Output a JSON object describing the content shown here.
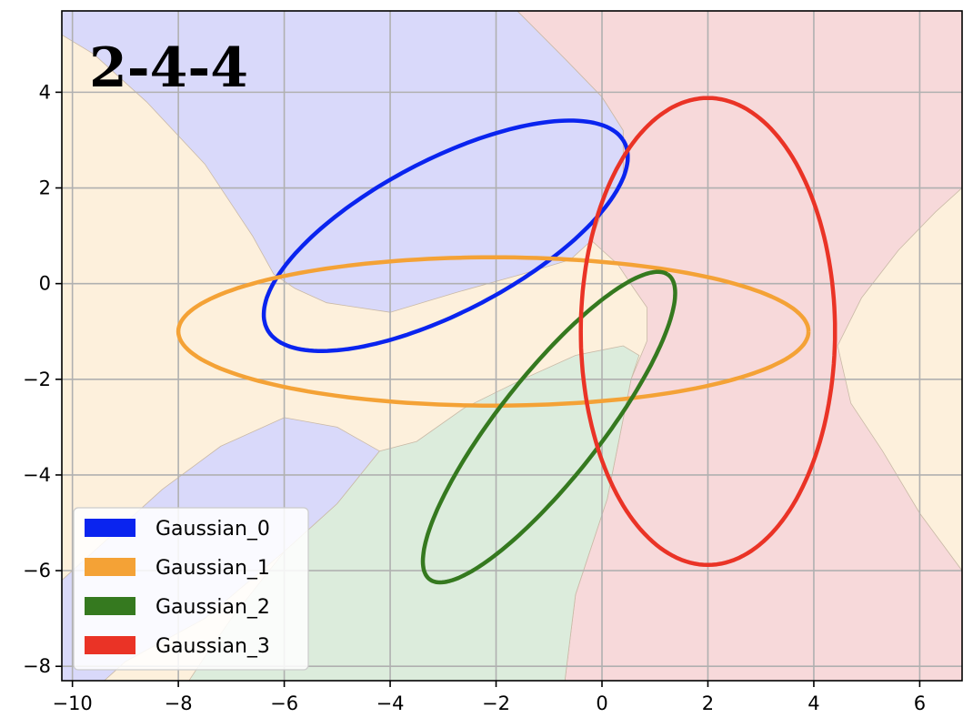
{
  "chart_data": {
    "type": "contour",
    "title": "2-4-4",
    "xlim": [
      -10.2,
      6.8
    ],
    "ylim": [
      -8.3,
      5.7
    ],
    "xticks": [
      -10,
      -8,
      -6,
      -4,
      -2,
      0,
      2,
      4,
      6
    ],
    "yticks": [
      -8,
      -6,
      -4,
      -2,
      0,
      2,
      4
    ],
    "grid": true,
    "legend_position": "lower-left",
    "region_colors": {
      "Gaussian_0": "#d9d9fa",
      "Gaussian_1": "#fdf0dc",
      "Gaussian_2": "#dcecdc",
      "Gaussian_3": "#f7d9da"
    },
    "regions": [
      {
        "series": "Gaussian_1",
        "polygon": [
          [
            -10.2,
            -8.3
          ],
          [
            6.8,
            -8.3
          ],
          [
            6.8,
            5.7
          ],
          [
            -10.2,
            5.7
          ]
        ]
      },
      {
        "series": "Gaussian_3",
        "polygon": [
          [
            -1.6,
            5.7
          ],
          [
            6.8,
            5.7
          ],
          [
            6.8,
            2.0
          ],
          [
            6.3,
            1.5
          ],
          [
            5.6,
            0.7
          ],
          [
            4.9,
            -0.3
          ],
          [
            4.45,
            -1.3
          ],
          [
            4.7,
            -2.5
          ],
          [
            5.3,
            -3.5
          ],
          [
            6.0,
            -4.8
          ],
          [
            6.8,
            -6.0
          ],
          [
            6.8,
            -8.3
          ],
          [
            -0.7,
            -8.3
          ],
          [
            -0.5,
            -6.5
          ],
          [
            0.1,
            -4.5
          ],
          [
            0.55,
            -2.0
          ],
          [
            0.85,
            -1.2
          ],
          [
            0.85,
            -0.5
          ],
          [
            0.6,
            -0.1
          ],
          [
            0.3,
            0.4
          ],
          [
            -0.2,
            0.9
          ],
          [
            0.0,
            1.5
          ],
          [
            0.4,
            2.2
          ],
          [
            0.4,
            3.2
          ],
          [
            0.0,
            3.9
          ],
          [
            -0.7,
            4.7
          ]
        ]
      },
      {
        "series": "Gaussian_0",
        "polygon": [
          [
            -10.2,
            5.7
          ],
          [
            -1.6,
            5.7
          ],
          [
            -0.7,
            4.7
          ],
          [
            0.0,
            3.9
          ],
          [
            0.4,
            3.2
          ],
          [
            0.4,
            2.2
          ],
          [
            0.0,
            1.5
          ],
          [
            -0.2,
            0.9
          ],
          [
            -0.6,
            0.5
          ],
          [
            -1.5,
            0.2
          ],
          [
            -2.8,
            -0.2
          ],
          [
            -4.0,
            -0.6
          ],
          [
            -5.2,
            -0.4
          ],
          [
            -5.8,
            -0.1
          ],
          [
            -6.2,
            0.2
          ],
          [
            -6.6,
            1.0
          ],
          [
            -7.5,
            2.5
          ],
          [
            -8.6,
            3.8
          ],
          [
            -9.6,
            4.8
          ],
          [
            -10.2,
            5.2
          ]
        ]
      },
      {
        "series": "Gaussian_0",
        "polygon": [
          [
            -10.2,
            -8.3
          ],
          [
            -9.4,
            -8.3
          ],
          [
            -9.0,
            -7.9
          ],
          [
            -7.5,
            -7.0
          ],
          [
            -6.0,
            -5.6
          ],
          [
            -5.0,
            -4.6
          ],
          [
            -4.2,
            -3.5
          ],
          [
            -5.0,
            -3.0
          ],
          [
            -6.0,
            -2.8
          ],
          [
            -7.2,
            -3.4
          ],
          [
            -8.3,
            -4.3
          ],
          [
            -9.3,
            -5.3
          ],
          [
            -10.2,
            -6.2
          ]
        ]
      },
      {
        "series": "Gaussian_2",
        "polygon": [
          [
            -7.8,
            -8.3
          ],
          [
            -0.7,
            -8.3
          ],
          [
            -0.5,
            -6.5
          ],
          [
            0.1,
            -4.5
          ],
          [
            0.55,
            -2.0
          ],
          [
            0.7,
            -1.5
          ],
          [
            0.4,
            -1.3
          ],
          [
            -0.5,
            -1.5
          ],
          [
            -1.5,
            -2.0
          ],
          [
            -2.6,
            -2.6
          ],
          [
            -3.5,
            -3.3
          ],
          [
            -4.2,
            -3.5
          ],
          [
            -5.0,
            -4.6
          ],
          [
            -6.0,
            -5.6
          ],
          [
            -7.0,
            -7.0
          ],
          [
            -7.5,
            -7.8
          ]
        ]
      }
    ],
    "series": [
      {
        "name": "Gaussian_0",
        "color": "#0a24ef",
        "center": [
          -2.95,
          1.0
        ],
        "semi_axes": [
          3.9,
          1.55
        ],
        "angle_deg": 31
      },
      {
        "name": "Gaussian_1",
        "color": "#f4a236",
        "center": [
          -2.05,
          -1.0
        ],
        "semi_axes": [
          5.95,
          1.55
        ],
        "angle_deg": 0
      },
      {
        "name": "Gaussian_2",
        "color": "#35791f",
        "center": [
          -1.0,
          -3.0
        ],
        "semi_axes": [
          3.9,
          1.0
        ],
        "angle_deg": 55
      },
      {
        "name": "Gaussian_3",
        "color": "#ea3326",
        "center": [
          2.0,
          -1.0
        ],
        "semi_axes": [
          2.4,
          4.88
        ],
        "angle_deg": 0
      }
    ]
  }
}
